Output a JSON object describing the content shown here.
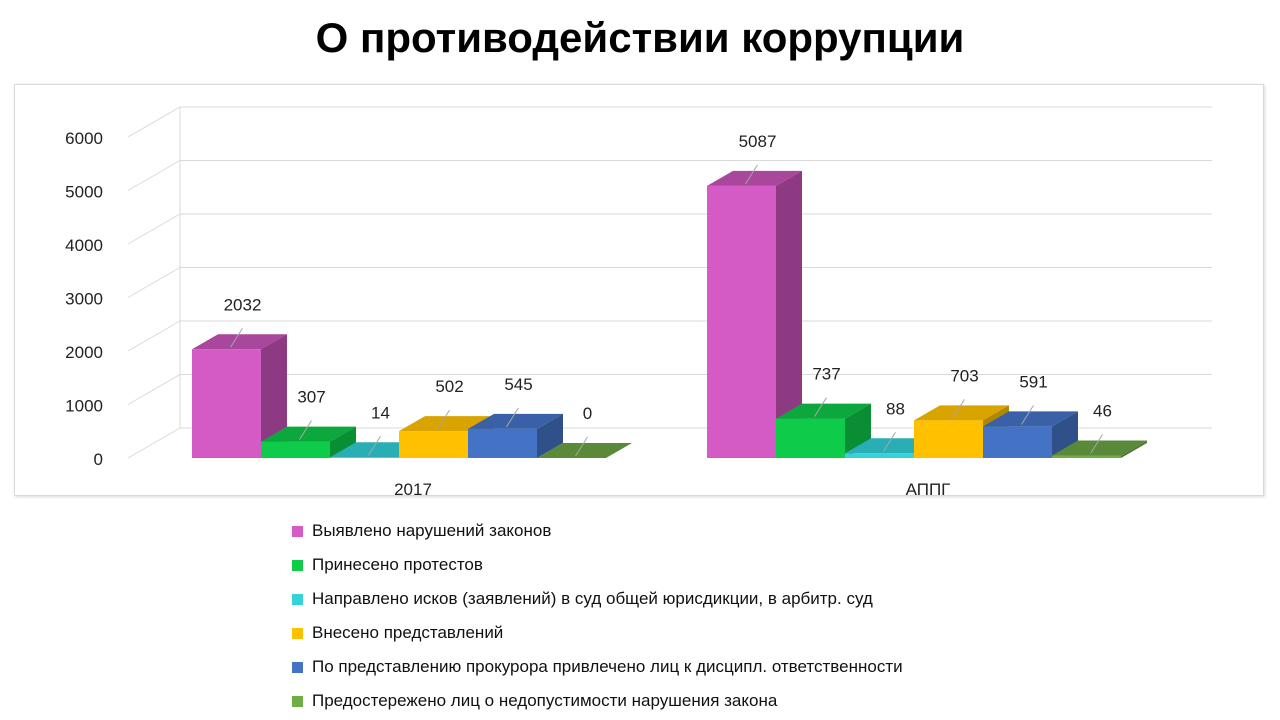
{
  "title": "О противодействии коррупции",
  "chart_data": {
    "type": "bar",
    "title": "О противодействии коррупции",
    "categories": [
      "2017",
      "АППГ"
    ],
    "ylim": [
      0,
      6000
    ],
    "yticks": [
      "0",
      "1000",
      "2000",
      "3000",
      "4000",
      "5000",
      "6000"
    ],
    "grid": true,
    "legend_position": "bottom",
    "series": [
      {
        "name": "Выявлено нарушений законов",
        "values": [
          2032,
          5087
        ],
        "labels": [
          "2032",
          "5087"
        ],
        "color": "#D45AC5",
        "color_side": "#8E3A83",
        "color_top": "#A8479C"
      },
      {
        "name": "Принесено протестов",
        "values": [
          307,
          737
        ],
        "labels": [
          "307",
          "737"
        ],
        "color": "#0ECC4A",
        "color_side": "#0A8E34",
        "color_top": "#0CA83D"
      },
      {
        "name": "Направлено исков (заявлений)  в суд общей юрисдикции,  в арбитр.  суд",
        "values": [
          14,
          88
        ],
        "labels": [
          "14",
          "88"
        ],
        "color": "#36D2DA",
        "color_side": "#249399",
        "color_top": "#2AAEB5"
      },
      {
        "name": "Внесено  представлений",
        "values": [
          502,
          703
        ],
        "labels": [
          "502",
          "703"
        ],
        "color": "#FFC000",
        "color_side": "#B38600",
        "color_top": "#D9A300"
      },
      {
        "name": "По представлению  прокурора привлечено лиц к дисципл. ответственности",
        "values": [
          545,
          591
        ],
        "labels": [
          "545",
          "591"
        ],
        "color": "#4472C4",
        "color_side": "#2F5089",
        "color_top": "#3A61A7"
      },
      {
        "name": "Предостережено  лиц о недопустимости  нарушения   закона",
        "values": [
          0,
          46
        ],
        "labels": [
          "0",
          "46"
        ],
        "color": "#70AD47",
        "color_side": "#4E7932",
        "color_top": "#5A8A39"
      }
    ]
  }
}
